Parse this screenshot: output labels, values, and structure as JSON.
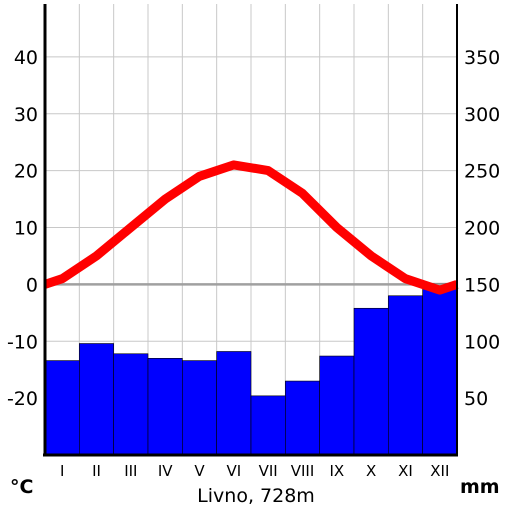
{
  "chart_data": {
    "type": "climate-diagram",
    "title": "Livno, 728m",
    "categories": [
      "I",
      "II",
      "III",
      "IV",
      "V",
      "VI",
      "VII",
      "VIII",
      "IX",
      "X",
      "XI",
      "XII"
    ],
    "series": [
      {
        "type": "bar",
        "axis": "right",
        "unit": "mm",
        "color": "#0000ff",
        "values": [
          83,
          98,
          89,
          85,
          83,
          91,
          52,
          65,
          87,
          129,
          140,
          151
        ]
      },
      {
        "type": "line",
        "axis": "left",
        "unit": "°C",
        "color": "#ff0000",
        "values": [
          1,
          5,
          10,
          15,
          19,
          21,
          20,
          16,
          10,
          5,
          1,
          -1
        ]
      }
    ],
    "y_left": {
      "label": "°C",
      "ticks": [
        "40",
        "30",
        "20",
        "10",
        "0",
        "-10",
        "-20"
      ],
      "ylim": [
        -30,
        50
      ]
    },
    "y_right": {
      "label": "mm",
      "ticks": [
        "350",
        "300",
        "250",
        "200",
        "150",
        "100",
        "50"
      ],
      "ylim": [
        0,
        400
      ]
    },
    "grid": true
  }
}
